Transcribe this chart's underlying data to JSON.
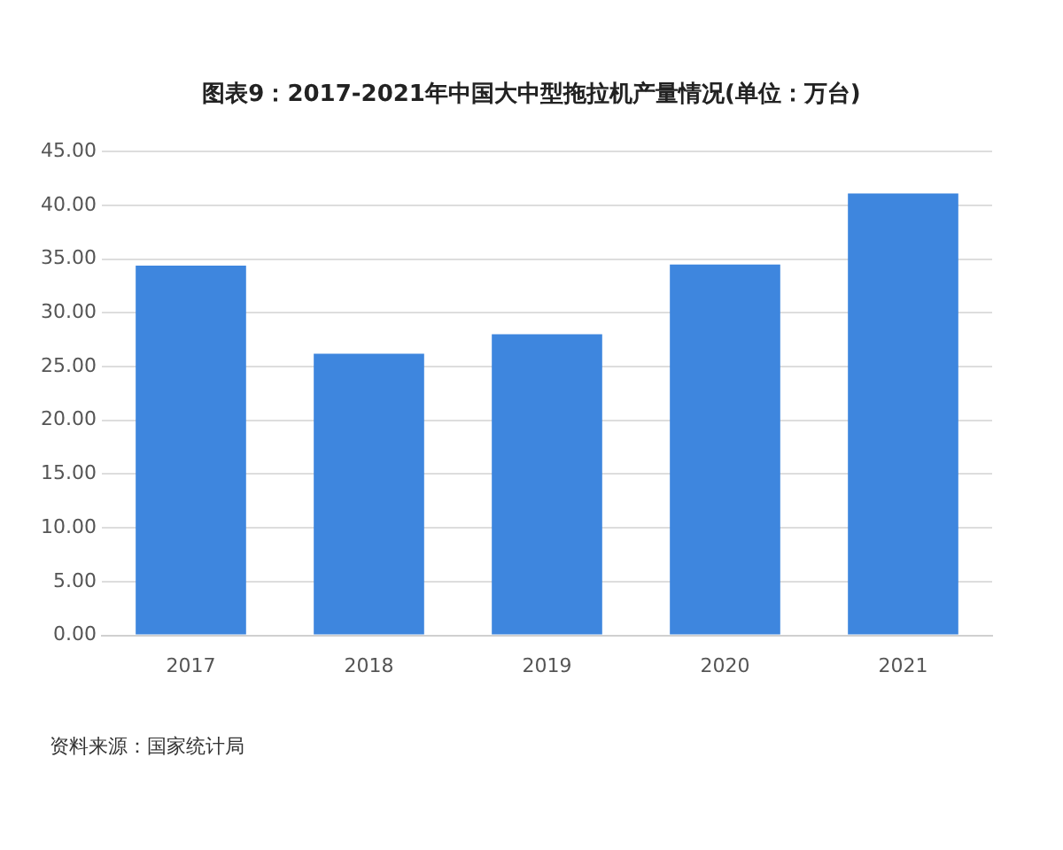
{
  "chart_data": {
    "type": "bar",
    "title": "图表9：2017-2021年中国大中型拖拉机产量情况(单位：万台)",
    "categories": [
      "2017",
      "2018",
      "2019",
      "2020",
      "2021"
    ],
    "values": [
      34.4,
      26.2,
      28.0,
      34.5,
      41.1
    ],
    "color": "#3e86de",
    "ylim": [
      0,
      45
    ],
    "yticks": [
      {
        "value": 0,
        "label": "0.00"
      },
      {
        "value": 5,
        "label": "5.00"
      },
      {
        "value": 10,
        "label": "10.00"
      },
      {
        "value": 15,
        "label": "15.00"
      },
      {
        "value": 20,
        "label": "20.00"
      },
      {
        "value": 25,
        "label": "25.00"
      },
      {
        "value": 30,
        "label": "30.00"
      },
      {
        "value": 35,
        "label": "35.00"
      },
      {
        "value": 40,
        "label": "40.00"
      },
      {
        "value": 45,
        "label": "45.00"
      }
    ],
    "grid": "y",
    "annotations": [
      "资料来源：国家统计局"
    ]
  }
}
